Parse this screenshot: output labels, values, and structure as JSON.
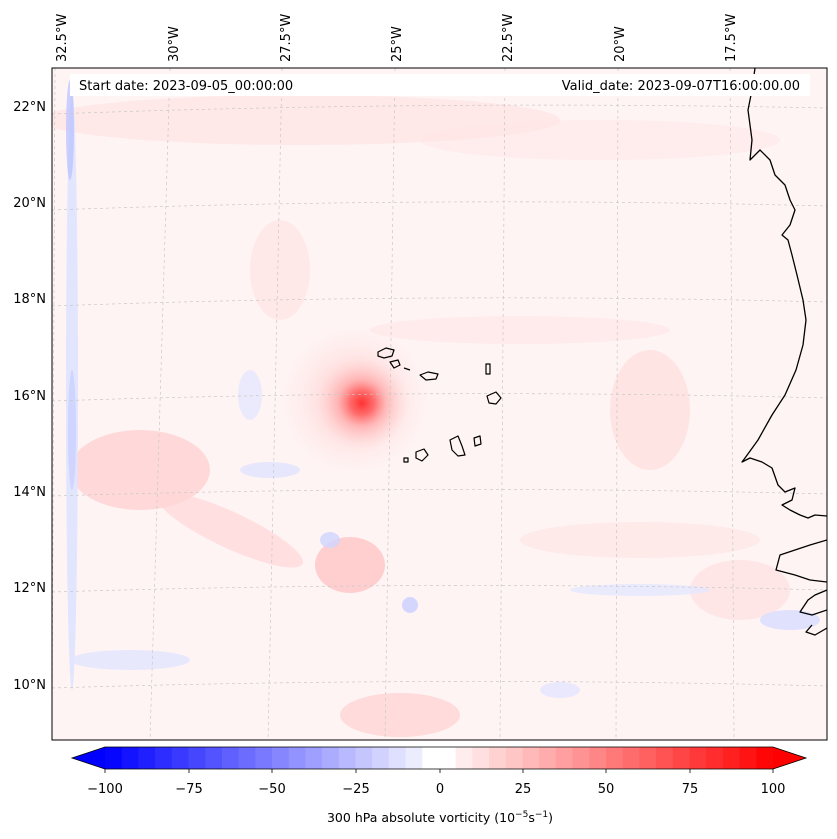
{
  "header": {
    "start_date": "Start date: 2023-09-05_00:00:00",
    "valid_date": "Valid_date: 2023-09-07T16:00:00.00"
  },
  "map": {
    "top_longitude_labels": [
      "32.5°W",
      "30°W",
      "27.5°W",
      "25°W",
      "22.5°W",
      "20°W",
      "17.5°W"
    ],
    "left_latitude_labels": [
      "22°N",
      "20°N",
      "18°N",
      "16°N",
      "14°N",
      "12°N",
      "10°N"
    ],
    "vortex_center": {
      "lon": -25.8,
      "lat": 15.8
    }
  },
  "colorbar": {
    "ticks": [
      "−100",
      "−75",
      "−50",
      "−25",
      "0",
      "25",
      "50",
      "75",
      "100"
    ],
    "label": "300 hPa absolute vorticity (10",
    "label_exp1": "−5",
    "label_mid": "s",
    "label_exp2": "−1",
    "label_end": ")",
    "min": -100,
    "max": 100,
    "levels": 40,
    "colors": {
      "negative": "#0000ff",
      "zero": "#ffffff",
      "positive": "#ff0000"
    }
  }
}
